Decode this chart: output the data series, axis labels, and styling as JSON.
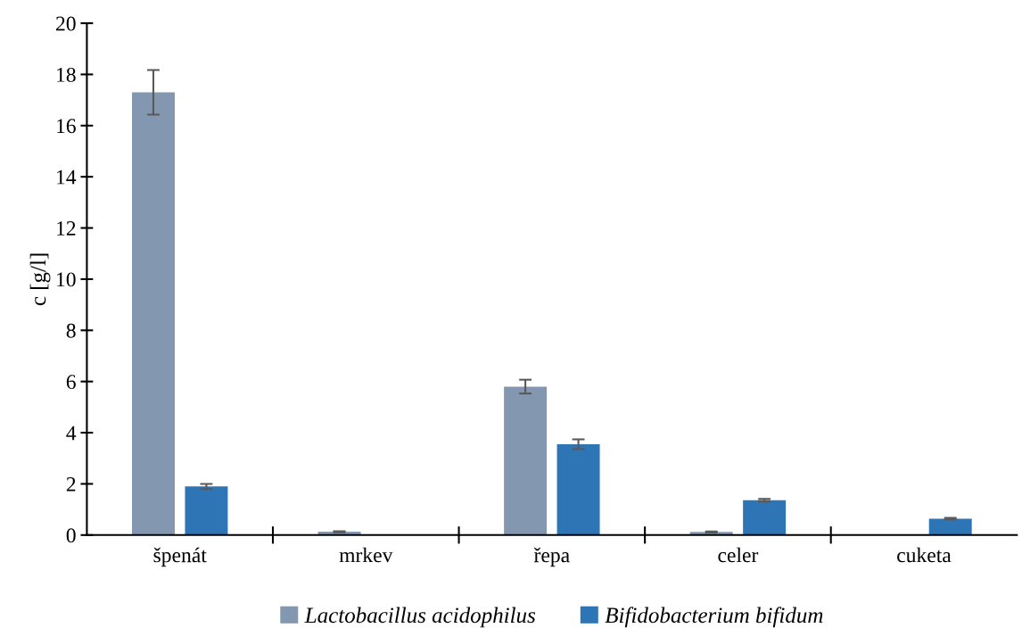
{
  "chart_data": {
    "type": "bar",
    "ylabel": "c [g/l]",
    "categories": [
      "špenát",
      "mrkev",
      "řepa",
      "celer",
      "cuketa"
    ],
    "series": [
      {
        "name": "Lactobacillus acidophilus",
        "color": "#8497b0",
        "values": [
          17.3,
          0.13,
          5.8,
          0.12,
          0.02
        ],
        "errors": [
          0.87,
          0.02,
          0.27,
          0.02,
          null
        ]
      },
      {
        "name": "Bifidobacterium bifidum",
        "color": "#2e75b6",
        "values": [
          1.9,
          null,
          3.55,
          1.36,
          0.64
        ],
        "errors": [
          0.1,
          null,
          0.19,
          0.05,
          0.03
        ]
      }
    ],
    "ylim": [
      0,
      20
    ],
    "yticks": [
      0,
      2,
      4,
      6,
      8,
      10,
      12,
      14,
      16,
      18,
      20
    ],
    "grid": false,
    "legend": "bottom"
  }
}
